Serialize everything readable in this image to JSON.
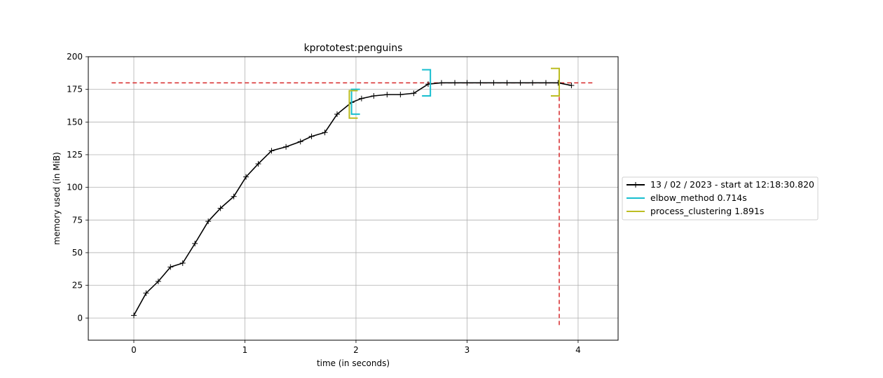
{
  "chart_data": {
    "type": "line",
    "title": "kprototest:penguins",
    "xlabel": "time (in seconds)",
    "ylabel": "memory used (in MiB)",
    "xlim": [
      -0.41,
      4.36
    ],
    "ylim": [
      -17,
      200
    ],
    "xticks": [
      0,
      1,
      2,
      3,
      4
    ],
    "yticks": [
      0,
      25,
      50,
      75,
      100,
      125,
      150,
      175,
      200
    ],
    "grid": true,
    "legend_position": "outside-right",
    "series": [
      {
        "name": "13 / 02 / 2023 - start at 12:18:30.820",
        "color": "#000000",
        "marker": "+",
        "x": [
          0,
          0.11,
          0.22,
          0.33,
          0.44,
          0.55,
          0.67,
          0.78,
          0.9,
          1.01,
          1.12,
          1.24,
          1.37,
          1.5,
          1.6,
          1.72,
          1.83,
          1.96,
          2.05,
          2.16,
          2.28,
          2.4,
          2.52,
          2.65,
          2.77,
          2.89,
          3.0,
          3.12,
          3.24,
          3.36,
          3.48,
          3.59,
          3.71,
          3.82,
          3.94
        ],
        "y": [
          2,
          19,
          28,
          39,
          42,
          57,
          74,
          84,
          93,
          108,
          118,
          128,
          131,
          135,
          139,
          142,
          156,
          165,
          168,
          170,
          171,
          171,
          172,
          179,
          180,
          180,
          180,
          180,
          180,
          180,
          180,
          180,
          180,
          180,
          178
        ]
      }
    ],
    "reference_lines": {
      "peak_memory_y": 180,
      "peak_time_x": 3.83,
      "color": "#d62728"
    },
    "brackets": [
      {
        "name": "elbow_method 0.714s",
        "color": "#17becf",
        "start": 1.96,
        "end": 2.67,
        "start_y": [
          156,
          175
        ],
        "end_y": [
          170,
          190
        ]
      },
      {
        "name": "process_clustering 1.891s",
        "color": "#bcbd22",
        "start": 1.94,
        "end": 3.83,
        "start_y": [
          153,
          174
        ],
        "end_y": [
          170,
          191
        ]
      }
    ]
  }
}
